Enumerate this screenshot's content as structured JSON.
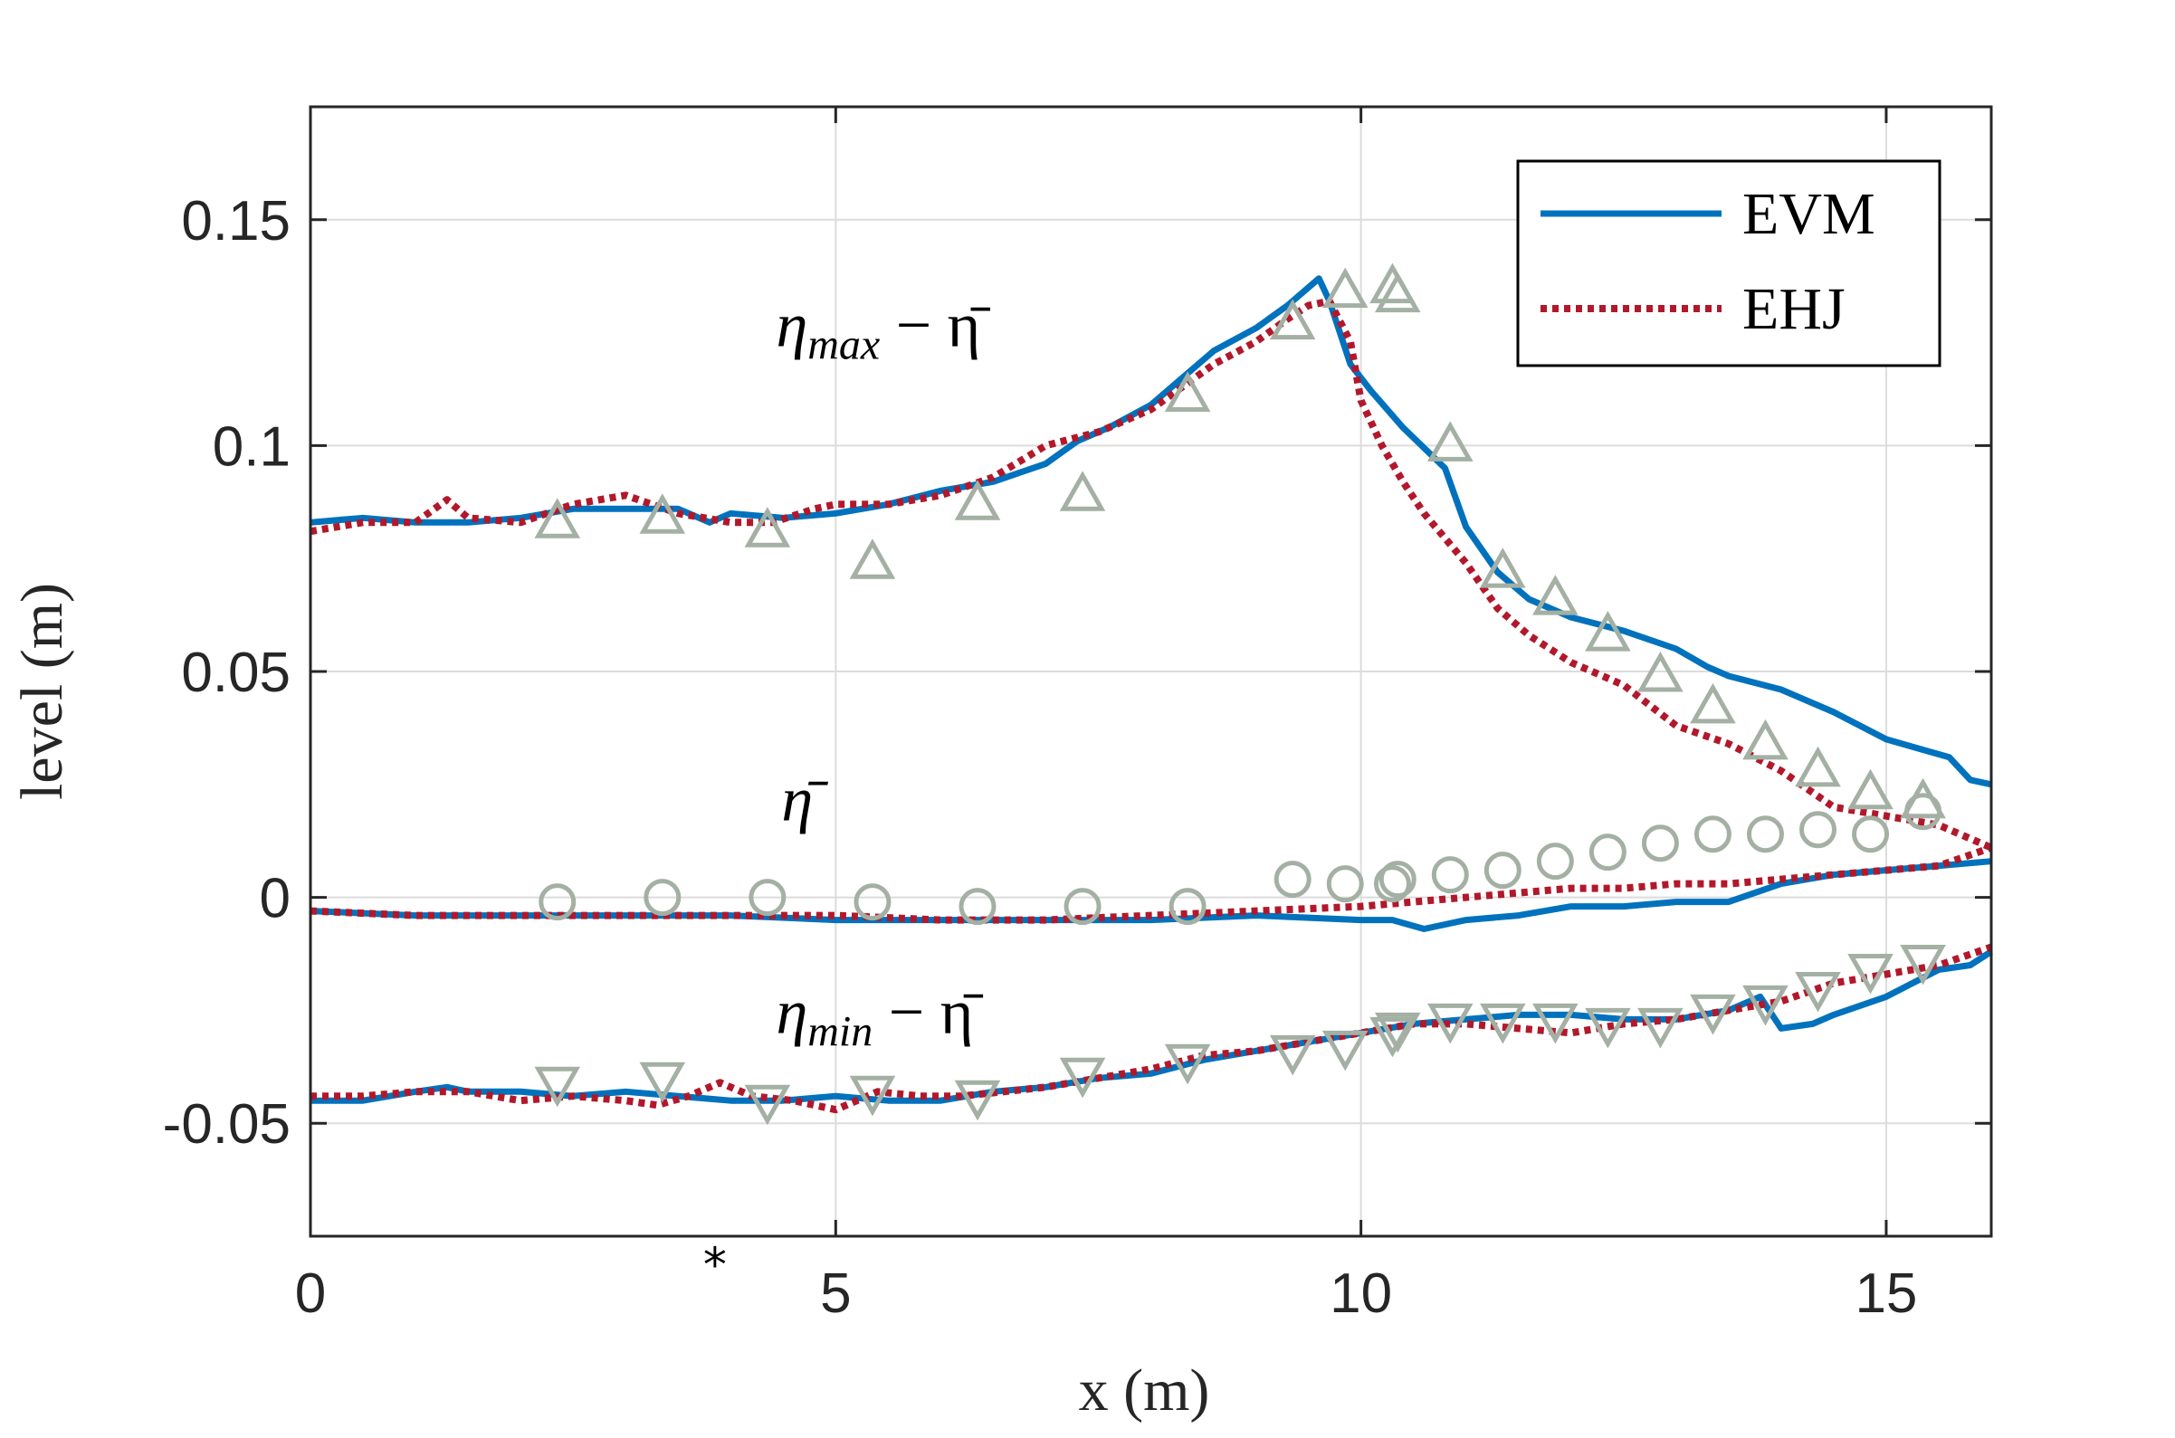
{
  "chart_data": {
    "type": "line",
    "title": "",
    "xlabel": "x (m)",
    "ylabel": "level (m)",
    "xlim": [
      0,
      16
    ],
    "ylim": [
      -0.075,
      0.175
    ],
    "grid": true,
    "legend_position": "top-right",
    "x_ticks": [
      0,
      5,
      10,
      15
    ],
    "x_tick_labels": [
      "0",
      "5",
      "10",
      "15"
    ],
    "y_ticks": [
      -0.05,
      0,
      0.05,
      0.1,
      0.15
    ],
    "y_tick_labels": [
      "-0.05",
      "0",
      "0.05",
      "0.1",
      "0.15"
    ],
    "colors": {
      "EVM": "#0072bd",
      "EHJ": "#b2182b",
      "measured": "#a3b0a3",
      "axis": "#262626",
      "grid": "#dcdcdc"
    },
    "annotations": [
      {
        "main": "η",
        "sub": "max",
        "suffix": " − η̄",
        "x": 4.95,
        "y": 0.122
      },
      {
        "main": "η̄",
        "sub": "",
        "suffix": "",
        "x": 5.0,
        "y": 0.017
      },
      {
        "main": "η",
        "sub": "min",
        "suffix": " − η̄",
        "x": 4.95,
        "y": -0.03
      }
    ],
    "marker_star": {
      "label": "*",
      "x": 3.85,
      "y": -0.0805
    },
    "series": [
      {
        "name": "EVM",
        "role": "eta_max",
        "style": "solid",
        "x": [
          0,
          0.5,
          1.0,
          1.5,
          2.0,
          2.5,
          3.0,
          3.5,
          3.8,
          4.0,
          4.5,
          5.0,
          5.5,
          6.0,
          6.5,
          7.0,
          7.3,
          7.6,
          8.0,
          8.3,
          8.6,
          9.0,
          9.3,
          9.5,
          9.6,
          9.7,
          9.9,
          10.1,
          10.4,
          10.8,
          11.0,
          11.3,
          11.6,
          12.0,
          12.5,
          13.0,
          13.3,
          13.5,
          14.0,
          14.5,
          15.0,
          15.3,
          15.6,
          15.8,
          16.0
        ],
        "values": [
          0.083,
          0.084,
          0.083,
          0.083,
          0.084,
          0.086,
          0.086,
          0.086,
          0.083,
          0.085,
          0.084,
          0.085,
          0.087,
          0.09,
          0.092,
          0.096,
          0.101,
          0.104,
          0.109,
          0.115,
          0.121,
          0.126,
          0.131,
          0.135,
          0.137,
          0.132,
          0.118,
          0.112,
          0.104,
          0.095,
          0.082,
          0.072,
          0.066,
          0.062,
          0.059,
          0.055,
          0.051,
          0.049,
          0.046,
          0.041,
          0.035,
          0.033,
          0.031,
          0.026,
          0.025
        ]
      },
      {
        "name": "EHJ",
        "role": "eta_max",
        "style": "dotted",
        "x": [
          0,
          0.5,
          1.0,
          1.3,
          1.5,
          2.0,
          2.5,
          3.0,
          3.5,
          4.0,
          4.4,
          4.8,
          5.0,
          5.5,
          6.0,
          6.5,
          7.0,
          7.5,
          8.0,
          8.3,
          8.6,
          9.0,
          9.3,
          9.5,
          9.7,
          9.9,
          10.0,
          10.2,
          10.4,
          10.6,
          11.0,
          11.3,
          11.6,
          12.0,
          12.5,
          13.0,
          13.5,
          14.0,
          14.5,
          15.0,
          15.5,
          16.0
        ],
        "values": [
          0.081,
          0.083,
          0.083,
          0.088,
          0.084,
          0.083,
          0.087,
          0.089,
          0.085,
          0.083,
          0.083,
          0.086,
          0.087,
          0.087,
          0.089,
          0.093,
          0.1,
          0.103,
          0.108,
          0.113,
          0.118,
          0.123,
          0.128,
          0.131,
          0.132,
          0.123,
          0.11,
          0.1,
          0.092,
          0.085,
          0.074,
          0.064,
          0.058,
          0.052,
          0.047,
          0.038,
          0.034,
          0.028,
          0.02,
          0.018,
          0.016,
          0.011
        ]
      },
      {
        "name": "EVM",
        "role": "eta_mean",
        "style": "solid",
        "x": [
          0,
          1,
          2,
          3,
          4,
          5,
          6,
          7,
          8,
          9,
          10,
          10.3,
          10.6,
          11,
          11.5,
          12,
          12.5,
          13,
          13.5,
          14,
          14.5,
          15,
          15.5,
          16
        ],
        "values": [
          -0.003,
          -0.004,
          -0.004,
          -0.004,
          -0.004,
          -0.005,
          -0.005,
          -0.005,
          -0.005,
          -0.004,
          -0.005,
          -0.005,
          -0.007,
          -0.005,
          -0.004,
          -0.002,
          -0.002,
          -0.001,
          -0.001,
          0.003,
          0.005,
          0.006,
          0.007,
          0.008
        ]
      },
      {
        "name": "EHJ",
        "role": "eta_mean",
        "style": "dotted",
        "x": [
          0,
          1,
          2,
          3,
          4,
          5,
          6,
          7,
          8,
          9,
          10,
          10.5,
          11,
          11.5,
          12,
          12.5,
          13,
          13.5,
          14,
          14.5,
          15,
          15.5,
          16
        ],
        "values": [
          -0.003,
          -0.004,
          -0.004,
          -0.004,
          -0.004,
          -0.004,
          -0.005,
          -0.005,
          -0.004,
          -0.003,
          -0.002,
          -0.001,
          0.0,
          0.001,
          0.002,
          0.002,
          0.003,
          0.003,
          0.004,
          0.005,
          0.006,
          0.007,
          0.011
        ]
      },
      {
        "name": "EVM",
        "role": "eta_min",
        "style": "solid",
        "x": [
          0,
          0.5,
          1.0,
          1.3,
          1.5,
          2.0,
          2.5,
          3.0,
          3.5,
          4.0,
          4.5,
          5.0,
          5.5,
          6.0,
          6.5,
          7.0,
          7.5,
          8.0,
          8.5,
          9.0,
          9.5,
          10.0,
          10.5,
          11.0,
          11.5,
          12.0,
          12.5,
          13.0,
          13.5,
          13.8,
          14.0,
          14.3,
          14.5,
          15.0,
          15.5,
          15.8,
          16.0
        ],
        "values": [
          -0.045,
          -0.045,
          -0.043,
          -0.042,
          -0.043,
          -0.043,
          -0.044,
          -0.043,
          -0.044,
          -0.045,
          -0.045,
          -0.044,
          -0.045,
          -0.045,
          -0.043,
          -0.042,
          -0.04,
          -0.039,
          -0.036,
          -0.034,
          -0.032,
          -0.03,
          -0.028,
          -0.027,
          -0.026,
          -0.026,
          -0.027,
          -0.027,
          -0.025,
          -0.022,
          -0.029,
          -0.028,
          -0.026,
          -0.022,
          -0.016,
          -0.015,
          -0.012
        ]
      },
      {
        "name": "EHJ",
        "role": "eta_min",
        "style": "dotted",
        "x": [
          0,
          0.5,
          1.0,
          1.5,
          2.0,
          2.5,
          3.0,
          3.3,
          3.6,
          3.9,
          4.2,
          4.6,
          5.0,
          5.4,
          5.8,
          6.2,
          6.6,
          7.0,
          7.5,
          8.0,
          8.5,
          9.0,
          9.5,
          10.0,
          10.5,
          11.0,
          11.5,
          12.0,
          12.5,
          13.0,
          13.5,
          14.0,
          14.5,
          15.0,
          15.5,
          16.0
        ],
        "values": [
          -0.044,
          -0.044,
          -0.043,
          -0.043,
          -0.045,
          -0.044,
          -0.045,
          -0.046,
          -0.044,
          -0.041,
          -0.044,
          -0.045,
          -0.047,
          -0.043,
          -0.044,
          -0.044,
          -0.043,
          -0.042,
          -0.04,
          -0.038,
          -0.035,
          -0.034,
          -0.032,
          -0.03,
          -0.028,
          -0.028,
          -0.029,
          -0.03,
          -0.028,
          -0.027,
          -0.025,
          -0.023,
          -0.019,
          -0.017,
          -0.015,
          -0.011
        ]
      },
      {
        "name": "measured eta_max",
        "role": "eta_max",
        "style": "marker-triangle-up",
        "x": [
          2.35,
          3.35,
          4.35,
          5.35,
          6.35,
          7.35,
          8.35,
          9.35,
          9.85,
          10.3,
          10.35,
          10.85,
          11.35,
          11.85,
          12.35,
          12.85,
          13.35,
          13.85,
          14.35,
          14.85,
          15.35
        ],
        "values": [
          0.083,
          0.084,
          0.081,
          0.074,
          0.087,
          0.089,
          0.111,
          0.127,
          0.134,
          0.135,
          0.133,
          0.1,
          0.072,
          0.066,
          0.058,
          0.049,
          0.042,
          0.034,
          0.028,
          0.023,
          0.021
        ]
      },
      {
        "name": "measured eta_mean",
        "role": "eta_mean",
        "style": "marker-circle",
        "x": [
          2.35,
          3.35,
          4.35,
          5.35,
          6.35,
          7.35,
          8.35,
          9.35,
          9.85,
          10.3,
          10.35,
          10.85,
          11.35,
          11.85,
          12.35,
          12.85,
          13.35,
          13.85,
          14.35,
          14.85,
          15.35
        ],
        "values": [
          -0.001,
          0.0,
          0.0,
          -0.001,
          -0.002,
          -0.002,
          -0.002,
          0.004,
          0.003,
          0.003,
          0.004,
          0.005,
          0.006,
          0.008,
          0.01,
          0.012,
          0.014,
          0.014,
          0.015,
          0.014,
          0.019
        ]
      },
      {
        "name": "measured eta_min",
        "role": "eta_min",
        "style": "marker-triangle-down",
        "x": [
          2.35,
          3.35,
          4.35,
          5.35,
          6.35,
          7.35,
          8.35,
          9.35,
          9.85,
          10.3,
          10.35,
          10.85,
          11.35,
          11.85,
          12.35,
          12.85,
          13.35,
          13.85,
          14.35,
          14.85,
          15.35
        ],
        "values": [
          -0.041,
          -0.04,
          -0.045,
          -0.043,
          -0.044,
          -0.039,
          -0.036,
          -0.034,
          -0.033,
          -0.03,
          -0.029,
          -0.027,
          -0.027,
          -0.027,
          -0.028,
          -0.028,
          -0.025,
          -0.023,
          -0.02,
          -0.016,
          -0.014
        ]
      }
    ],
    "legend": [
      {
        "label": "EVM",
        "style": "solid"
      },
      {
        "label": "EHJ",
        "style": "dotted"
      }
    ]
  }
}
